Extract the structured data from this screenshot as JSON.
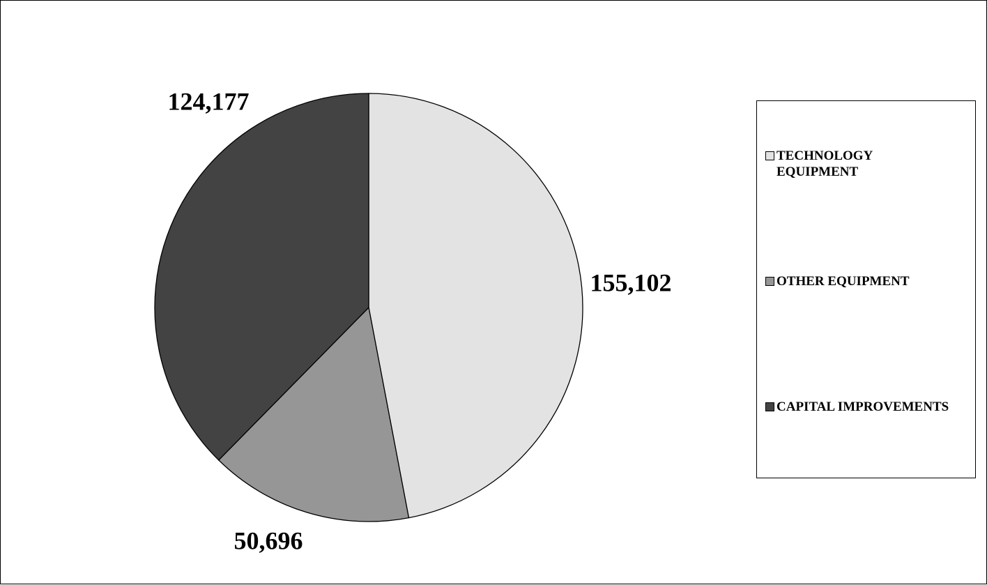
{
  "chart_data": {
    "type": "pie",
    "title": "",
    "legend_position": "right",
    "slices": [
      {
        "label": "TECHNOLOGY EQUIPMENT",
        "legend_text": "TECHNOLOGY\nEQUIPMENT",
        "value": 155102,
        "value_label": "155,102",
        "color": "#e3e3e3"
      },
      {
        "label": "OTHER EQUIPMENT",
        "legend_text": "OTHER EQUIPMENT",
        "value": 50696,
        "value_label": "50,696",
        "color": "#969696"
      },
      {
        "label": "CAPITAL IMPROVEMENTS",
        "legend_text": "CAPITAL IMPROVEMENTS",
        "value": 124177,
        "value_label": "124,177",
        "color": "#434343"
      }
    ]
  }
}
